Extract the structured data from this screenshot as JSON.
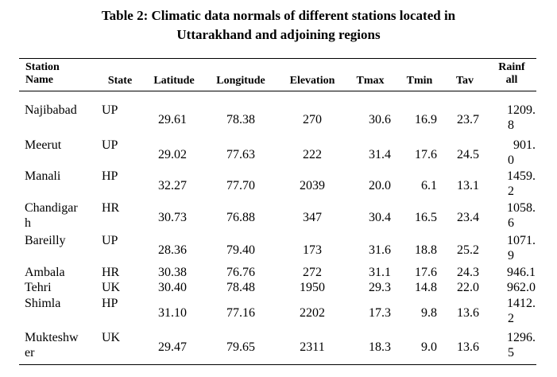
{
  "title_line1": "Table 2: Climatic data normals of different stations located in",
  "title_line2": "Uttarakhand and adjoining regions",
  "headers": {
    "station_l1": "Station",
    "station_l2": "Name",
    "state": "State",
    "latitude": "Latitude",
    "longitude": "Longitude",
    "elevation": "Elevation",
    "tmax": "Tmax",
    "tmin": "Tmin",
    "tav": "Tav",
    "rain_l1": "Rainf",
    "rain_l2": "all"
  },
  "rows": [
    {
      "name1": "Najibabad",
      "name2": "",
      "state": "UP",
      "lat": "29.61",
      "lon": "78.38",
      "elev": "270",
      "tmax": "30.6",
      "tmin": "16.9",
      "tav": "23.7",
      "rain1": "1209.",
      "rain2": "8"
    },
    {
      "name1": "Meerut",
      "name2": "",
      "state": "UP",
      "lat": "29.02",
      "lon": "77.63",
      "elev": "222",
      "tmax": "31.4",
      "tmin": "17.6",
      "tav": "24.5",
      "rain1": "901.",
      "rain2": "0"
    },
    {
      "name1": "Manali",
      "name2": "",
      "state": "HP",
      "lat": "32.27",
      "lon": "77.70",
      "elev": "2039",
      "tmax": "20.0",
      "tmin": "6.1",
      "tav": "13.1",
      "rain1": "1459.",
      "rain2": "2"
    },
    {
      "name1": "Chandigar",
      "name2": "h",
      "state": "HR",
      "lat": "30.73",
      "lon": "76.88",
      "elev": "347",
      "tmax": "30.4",
      "tmin": "16.5",
      "tav": "23.4",
      "rain1": "1058.",
      "rain2": "6"
    },
    {
      "name1": "Bareilly",
      "name2": "",
      "state": "UP",
      "lat": "28.36",
      "lon": "79.40",
      "elev": "173",
      "tmax": "31.6",
      "tmin": "18.8",
      "tav": "25.2",
      "rain1": "1071.",
      "rain2": "9"
    },
    {
      "name1": "Ambala",
      "name2": "",
      "state": "HR",
      "lat": "30.38",
      "lon": "76.76",
      "elev": "272",
      "tmax": "31.1",
      "tmin": "17.6",
      "tav": "24.3",
      "rain1": "946.1",
      "rain2": ""
    },
    {
      "name1": "Tehri",
      "name2": "",
      "state": "UK",
      "lat": "30.40",
      "lon": "78.48",
      "elev": "1950",
      "tmax": "29.3",
      "tmin": "14.8",
      "tav": "22.0",
      "rain1": "962.0",
      "rain2": ""
    },
    {
      "name1": "Shimla",
      "name2": "",
      "state": "HP",
      "lat": "31.10",
      "lon": "77.16",
      "elev": "2202",
      "tmax": "17.3",
      "tmin": "9.8",
      "tav": "13.6",
      "rain1": "1412.",
      "rain2": "2"
    },
    {
      "name1": "Mukteshw",
      "name2": "er",
      "state": "UK",
      "lat": "29.47",
      "lon": "79.65",
      "elev": "2311",
      "tmax": "18.3",
      "tmin": "9.0",
      "tav": "13.6",
      "rain1": "1296.",
      "rain2": "5"
    }
  ]
}
